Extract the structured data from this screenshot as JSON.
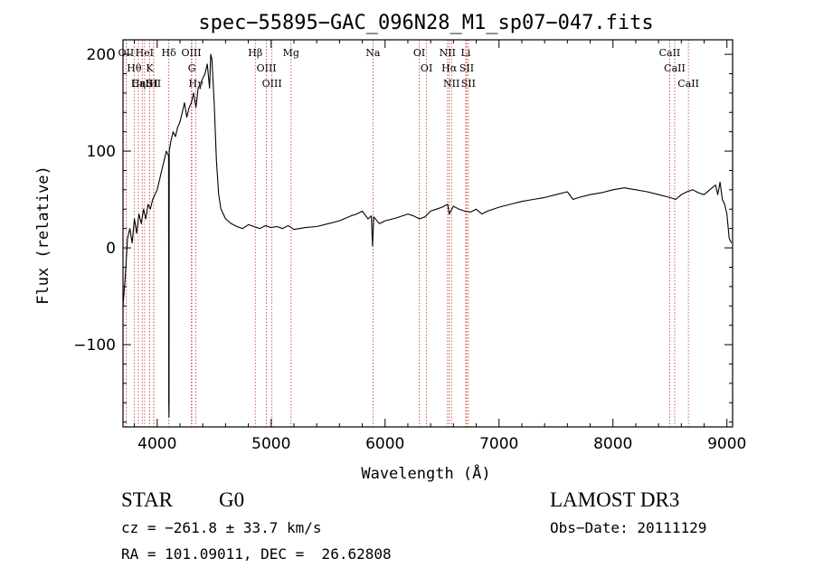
{
  "chart_data": {
    "type": "line",
    "title": "spec−55895−GAC_096N28_M1_sp07−047.fits",
    "xlabel": "Wavelength (Å)",
    "ylabel": "Flux (relative)",
    "xlim": [
      3700,
      9050
    ],
    "ylim": [
      -185,
      215
    ],
    "xticks": [
      4000,
      5000,
      6000,
      7000,
      8000,
      9000
    ],
    "xtick_labels": [
      "4000",
      "5000",
      "6000",
      "7000",
      "8000",
      "9000"
    ],
    "yticks": [
      -100,
      0,
      100,
      200
    ],
    "ytick_labels": [
      "−100",
      "0",
      "100",
      "200"
    ],
    "grid": false,
    "series": [
      {
        "name": "spectrum",
        "color": "#000000",
        "x": [
          3700,
          3720,
          3740,
          3760,
          3780,
          3800,
          3820,
          3840,
          3860,
          3880,
          3900,
          3920,
          3940,
          3960,
          3980,
          4000,
          4020,
          4040,
          4060,
          4080,
          4100,
          4102,
          4104,
          4106,
          4120,
          4140,
          4160,
          4180,
          4200,
          4220,
          4240,
          4260,
          4280,
          4300,
          4320,
          4340,
          4360,
          4380,
          4400,
          4420,
          4440,
          4460,
          4470,
          4480,
          4500,
          4520,
          4540,
          4560,
          4580,
          4600,
          4650,
          4700,
          4750,
          4800,
          4850,
          4900,
          4950,
          5000,
          5050,
          5100,
          5150,
          5200,
          5300,
          5400,
          5500,
          5600,
          5700,
          5750,
          5800,
          5850,
          5880,
          5890,
          5900,
          5950,
          6000,
          6100,
          6200,
          6250,
          6300,
          6350,
          6400,
          6450,
          6500,
          6550,
          6563,
          6600,
          6650,
          6700,
          6750,
          6800,
          6850,
          6900,
          7000,
          7100,
          7200,
          7300,
          7400,
          7500,
          7600,
          7650,
          7700,
          7800,
          7900,
          8000,
          8100,
          8200,
          8300,
          8400,
          8500,
          8550,
          8600,
          8650,
          8700,
          8750,
          8800,
          8850,
          8900,
          8920,
          8940,
          8960,
          8980,
          9000,
          9020,
          9040
        ],
        "values": [
          -60,
          -30,
          10,
          20,
          5,
          30,
          15,
          35,
          25,
          40,
          30,
          45,
          40,
          50,
          55,
          60,
          70,
          80,
          90,
          100,
          95,
          -160,
          -175,
          100,
          110,
          120,
          115,
          125,
          130,
          140,
          150,
          135,
          145,
          150,
          160,
          145,
          165,
          170,
          175,
          180,
          190,
          165,
          200,
          195,
          150,
          90,
          55,
          40,
          35,
          30,
          25,
          22,
          20,
          24,
          22,
          20,
          23,
          21,
          22,
          20,
          23,
          19,
          21,
          22,
          25,
          28,
          33,
          35,
          38,
          30,
          33,
          2,
          32,
          25,
          28,
          31,
          35,
          33,
          30,
          32,
          38,
          40,
          42,
          45,
          35,
          43,
          40,
          38,
          37,
          40,
          35,
          38,
          42,
          45,
          48,
          50,
          52,
          55,
          58,
          50,
          52,
          55,
          57,
          60,
          62,
          60,
          58,
          55,
          52,
          50,
          55,
          58,
          60,
          57,
          55,
          60,
          65,
          55,
          68,
          50,
          45,
          35,
          10,
          5
        ]
      }
    ],
    "lines": [
      {
        "label": "OII",
        "wavelength": 3727
      },
      {
        "label": "Hθ",
        "wavelength": 3798
      },
      {
        "label": "Hη",
        "wavelength": 3835
      },
      {
        "label": "CaII",
        "wavelength": 3869
      },
      {
        "label": "HeI",
        "wavelength": 3889
      },
      {
        "label": "K",
        "wavelength": 3934
      },
      {
        "label": "SII",
        "wavelength": 3970
      },
      {
        "label": "H",
        "wavelength": 3969
      },
      {
        "label": "Hδ",
        "wavelength": 4102
      },
      {
        "label": "OIII",
        "wavelength": 4300
      },
      {
        "label": "Hγ",
        "wavelength": 4340
      },
      {
        "label": "G",
        "wavelength": 4304
      },
      {
        "label": "Hβ",
        "wavelength": 4861
      },
      {
        "label": "OIII",
        "wavelength": 4959
      },
      {
        "label": "OIII",
        "wavelength": 5007
      },
      {
        "label": "Mg",
        "wavelength": 5175
      },
      {
        "label": "Na",
        "wavelength": 5894
      },
      {
        "label": "OI",
        "wavelength": 6300
      },
      {
        "label": "OI",
        "wavelength": 6364
      },
      {
        "label": "NII",
        "wavelength": 6548
      },
      {
        "label": "Hα",
        "wavelength": 6563
      },
      {
        "label": "NII",
        "wavelength": 6583
      },
      {
        "label": "SII",
        "wavelength": 6716
      },
      {
        "label": "Li",
        "wavelength": 6708
      },
      {
        "label": "SII",
        "wavelength": 6731
      },
      {
        "label": "CaII",
        "wavelength": 8498
      },
      {
        "label": "CaII",
        "wavelength": 8542
      },
      {
        "label": "CaII",
        "wavelength": 8662
      }
    ]
  },
  "info": {
    "class": "STAR",
    "subclass": "G0",
    "survey": "LAMOST DR3",
    "cz": "cz = −261.8 ± 33.7 km/s",
    "obs_date": "Obs−Date: 20111129",
    "coords": "RA = 101.09011, DEC =  26.62808"
  },
  "colors": {
    "spectrum": "#000000",
    "line_marker": "#c0392b",
    "text": "#000000",
    "background": "#ffffff"
  }
}
